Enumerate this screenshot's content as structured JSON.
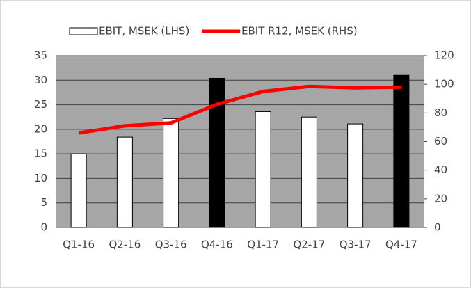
{
  "chart_data": {
    "type": "bar",
    "categories": [
      "Q1-16",
      "Q2-16",
      "Q3-16",
      "Q4-16",
      "Q1-17",
      "Q2-17",
      "Q3-17",
      "Q4-17"
    ],
    "series": [
      {
        "name": "EBIT, MSEK (LHS)",
        "type": "bar",
        "edgecolor": "#000000",
        "colors": [
          "#ffffff",
          "#ffffff",
          "#ffffff",
          "#000000",
          "#ffffff",
          "#ffffff",
          "#ffffff",
          "#000000"
        ],
        "values": [
          15.0,
          18.4,
          22.2,
          30.4,
          23.6,
          22.5,
          21.1,
          31.0
        ]
      },
      {
        "name": "EBIT R12, MSEK (RHS)",
        "type": "line",
        "axis": "y2",
        "color": "#ff0000",
        "values": [
          66,
          71,
          73,
          86,
          95,
          98.5,
          97.5,
          98
        ]
      }
    ],
    "ylim": [
      0,
      35
    ],
    "yticks": [
      0,
      5,
      10,
      15,
      20,
      25,
      30,
      35
    ],
    "y2lim": [
      0,
      120
    ],
    "y2ticks": [
      0,
      20,
      40,
      60,
      80,
      100,
      120
    ],
    "grid": true,
    "plot_background": "#a6a6a6",
    "legend": "top"
  }
}
